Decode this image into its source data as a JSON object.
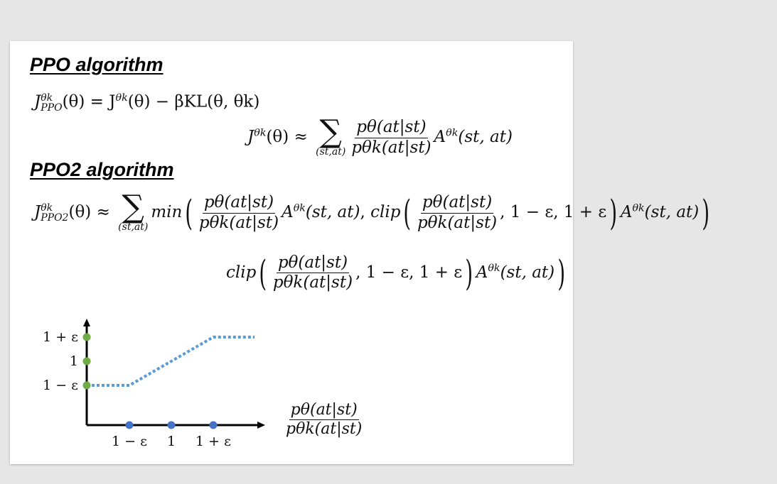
{
  "slide": {
    "ppo_heading": "PPO algorithm",
    "ppo2_heading": "PPO2 algorithm"
  },
  "equations": {
    "ppo_objective": {
      "lhs": "J",
      "lhs_sup": "θk",
      "lhs_sub": "PPO",
      "rhs": "(θ) = J",
      "rhs_sup": "θk",
      "rhs_tail": "(θ) − βKL(θ, θk)"
    },
    "ppo_surrogate": {
      "lhs": "J",
      "lhs_sup": "θk",
      "lhs_tail": "(θ) ≈",
      "sum_limit": "(st,at)",
      "ratio_num": "pθ(at|st)",
      "ratio_den": "pθk(at|st)",
      "advantage": "A",
      "advantage_sup": "θk",
      "advantage_args": "(st, at)"
    },
    "ppo2_objective": {
      "lhs": "J",
      "lhs_sup": "θk",
      "lhs_sub": "PPO2",
      "lhs_tail": "(θ) ≈",
      "sum_limit": "(st,at)",
      "min": "min",
      "ratio_num": "pθ(at|st)",
      "ratio_den": "pθk(at|st)",
      "advantage": "A",
      "advantage_sup": "θk",
      "advantage_args": "(st, at)",
      "clip": "clip",
      "clip_bounds": ", 1 − ε, 1 + ε"
    },
    "clip_term": {
      "clip": "clip",
      "ratio_num": "pθ(at|st)",
      "ratio_den": "pθk(at|st)",
      "clip_bounds": ", 1 − ε, 1 + ε",
      "advantage": "A",
      "advantage_sup": "θk",
      "advantage_args": "(st, at)"
    }
  },
  "chart_data": {
    "type": "line",
    "title": "",
    "x_tick_labels": [
      "1 − ε",
      "1",
      "1 + ε"
    ],
    "y_tick_labels": [
      "1 + ε",
      "1",
      "1 − ε"
    ],
    "x_axis_label_num": "pθ(at|st)",
    "x_axis_label_den": "pθk(at|st)",
    "series": [
      {
        "style": "dotted",
        "color": "#5b9bd5",
        "points": [
          [
            0.8,
            0.8
          ],
          [
            1.0,
            0.8
          ],
          [
            1.2,
            1.2
          ],
          [
            1.5,
            1.2
          ]
        ]
      }
    ],
    "y_markers": [
      0.8,
      1.0,
      1.2
    ],
    "x_markers": [
      0.8,
      1.0,
      1.2
    ],
    "y_marker_color": "#70ad47",
    "x_marker_color": "#4472c4",
    "axis_color": "#000000"
  }
}
